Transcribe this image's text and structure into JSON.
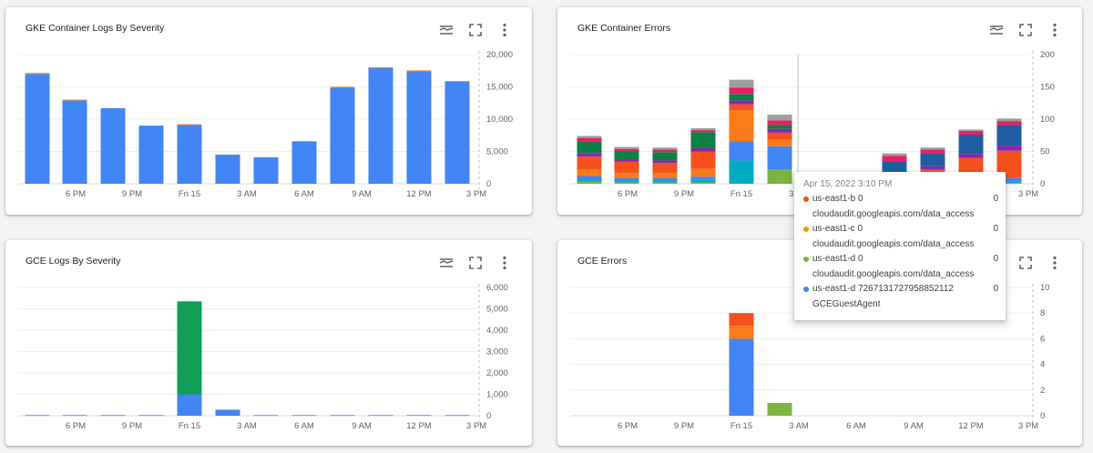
{
  "cards": [
    {
      "title": "GKE Container Logs By Severity",
      "chart_data": {
        "type": "bar",
        "stacked": true,
        "x_ticks": [
          "6 PM",
          "9 PM",
          "Fri 15",
          "3 AM",
          "6 AM",
          "9 AM",
          "12 PM",
          "3 PM"
        ],
        "y_ticks": [
          "20,000",
          "15,000",
          "10,000",
          "5,000",
          "0"
        ],
        "ylim": [
          0,
          20000
        ],
        "series": [
          {
            "color": "#4285f4",
            "values": [
              17000,
              12900,
              11700,
              9000,
              9100,
              4500,
              4100,
              6500,
              14900,
              17900,
              17400,
              15800
            ]
          },
          {
            "color": "#fa7b17",
            "values": [
              150,
              120,
              0,
              0,
              100,
              0,
              0,
              100,
              120,
              150,
              150,
              100
            ]
          }
        ]
      }
    },
    {
      "title": "GKE Container Errors",
      "chart_data": {
        "type": "bar",
        "stacked": true,
        "x_ticks": [
          "6 PM",
          "9 PM",
          "Fri 15",
          "3 AM",
          "6 AM",
          "9 AM",
          "12 PM",
          "3 PM"
        ],
        "y_ticks": [
          "200",
          "150",
          "100",
          "50",
          "0"
        ],
        "ylim": [
          0,
          200
        ],
        "series": [
          {
            "color": "#7cb342",
            "values": [
              3,
              2,
              2,
              2,
              0,
              22,
              0,
              0,
              0,
              0,
              0,
              1
            ]
          },
          {
            "color": "#00acc1",
            "values": [
              4,
              3,
              3,
              4,
              36,
              0,
              0,
              0,
              0,
              0,
              0,
              2
            ]
          },
          {
            "color": "#4285f4",
            "values": [
              5,
              4,
              4,
              5,
              30,
              36,
              0,
              0,
              0,
              0,
              0,
              6
            ]
          },
          {
            "color": "#fa7b17",
            "values": [
              10,
              8,
              8,
              12,
              48,
              10,
              0,
              0,
              0,
              0,
              0,
              0
            ]
          },
          {
            "color": "#f4511e",
            "values": [
              20,
              17,
              15,
              27,
              9,
              11,
              6,
              4,
              14,
              22,
              40,
              42
            ]
          },
          {
            "color": "#8e24aa",
            "values": [
              5,
              4,
              4,
              5,
              6,
              6,
              3,
              3,
              5,
              5,
              6,
              8
            ]
          },
          {
            "color": "#1f5ea0",
            "values": [
              0,
              0,
              0,
              0,
              0,
              0,
              0,
              0,
              16,
              20,
              30,
              32
            ]
          },
          {
            "color": "#0b8043",
            "values": [
              19,
              12,
              13,
              25,
              10,
              6,
              0,
              0,
              0,
              0,
              0,
              0
            ]
          },
          {
            "color": "#e91e63",
            "values": [
              5,
              4,
              4,
              3,
              10,
              7,
              4,
              3,
              8,
              6,
              6,
              6
            ]
          },
          {
            "color": "#9e9e9e",
            "values": [
              3,
              3,
              3,
              3,
              12,
              9,
              1,
              2,
              4,
              3,
              2,
              4
            ]
          }
        ]
      },
      "tooltip": {
        "time": "Apr 15, 2022 3:10 PM",
        "rows": [
          {
            "color": "#f4511e",
            "name": "us-east1-b 0",
            "sub": "cloudaudit.googleapis.com/data_access",
            "value": "0"
          },
          {
            "color": "#f29900",
            "name": "us-east1-c 0",
            "sub": "cloudaudit.googleapis.com/data_access",
            "value": "0"
          },
          {
            "color": "#7cb342",
            "name": "us-east1-d 0",
            "sub": "cloudaudit.googleapis.com/data_access",
            "value": "0"
          },
          {
            "color": "#4285f4",
            "name": "us-east1-d 7267131727958852112",
            "sub": "GCEGuestAgent",
            "value": "0"
          }
        ]
      }
    },
    {
      "title": "GCE Logs By Severity",
      "chart_data": {
        "type": "bar",
        "stacked": true,
        "x_ticks": [
          "6 PM",
          "9 PM",
          "Fri 15",
          "3 AM",
          "6 AM",
          "9 AM",
          "12 PM",
          "3 PM"
        ],
        "y_ticks": [
          "6,000",
          "5,000",
          "4,000",
          "3,000",
          "2,000",
          "1,000",
          "0"
        ],
        "ylim": [
          0,
          6000
        ],
        "series": [
          {
            "color": "#4285f4",
            "values": [
              30,
              30,
              30,
              30,
              1000,
              280,
              30,
              30,
              30,
              30,
              30,
              30
            ]
          },
          {
            "color": "#0f9d58",
            "values": [
              0,
              0,
              0,
              0,
              4350,
              0,
              0,
              0,
              0,
              0,
              0,
              0
            ]
          }
        ]
      }
    },
    {
      "title": "GCE Errors",
      "chart_data": {
        "type": "bar",
        "stacked": true,
        "x_ticks": [
          "6 PM",
          "9 PM",
          "Fri 15",
          "3 AM",
          "6 AM",
          "9 AM",
          "12 PM",
          "3 PM"
        ],
        "y_ticks": [
          "10",
          "8",
          "6",
          "4",
          "2",
          "0"
        ],
        "ylim": [
          0,
          10
        ],
        "series": [
          {
            "color": "#4285f4",
            "values": [
              0,
              0,
              0,
              0,
              6,
              0,
              0,
              0,
              0,
              0,
              0,
              0
            ]
          },
          {
            "color": "#fa7b17",
            "values": [
              0,
              0,
              0,
              0,
              1,
              0,
              0,
              0,
              0,
              0,
              0,
              0
            ]
          },
          {
            "color": "#f4511e",
            "values": [
              0,
              0,
              0,
              0,
              1,
              0,
              0,
              0,
              0,
              0,
              0,
              0
            ]
          },
          {
            "color": "#7cb342",
            "values": [
              0,
              0,
              0,
              0,
              0,
              1,
              0,
              0,
              0,
              0,
              0,
              0
            ]
          }
        ]
      }
    }
  ],
  "toolbar": {
    "icons": [
      "legend-toggle-icon",
      "fullscreen-icon",
      "more-vert-icon"
    ]
  }
}
